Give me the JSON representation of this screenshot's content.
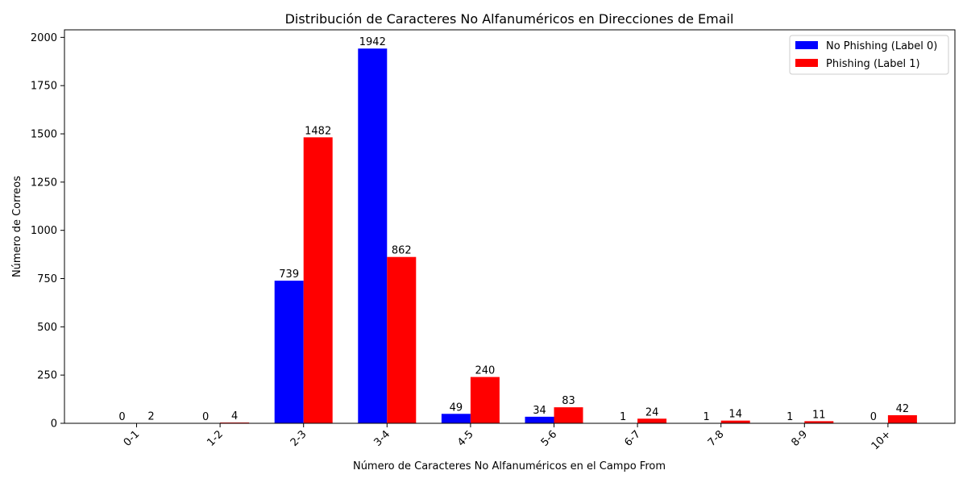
{
  "chart_data": {
    "type": "bar",
    "title": "Distribución de Caracteres No Alfanuméricos en Direcciones de Email",
    "xlabel": "Número de Caracteres No Alfanuméricos en el Campo From",
    "ylabel": "Número de Correos",
    "categories": [
      "0-1",
      "1-2",
      "2-3",
      "3-4",
      "4-5",
      "5-6",
      "6-7",
      "7-8",
      "8-9",
      "10+"
    ],
    "series": [
      {
        "name": "No Phishing (Label 0)",
        "values": [
          0,
          0,
          739,
          1942,
          49,
          34,
          1,
          1,
          1,
          0
        ],
        "color": "#0000ff"
      },
      {
        "name": "Phishing (Label 1)",
        "values": [
          2,
          4,
          1482,
          862,
          240,
          83,
          24,
          14,
          11,
          42
        ],
        "color": "#ff0000"
      }
    ],
    "ylim": [
      0,
      2039.1
    ],
    "yticks": [
      0,
      250,
      500,
      750,
      1000,
      1250,
      1500,
      1750,
      2000
    ],
    "grid": false,
    "legend_position": "top-right",
    "x_tick_rotation": 45
  }
}
